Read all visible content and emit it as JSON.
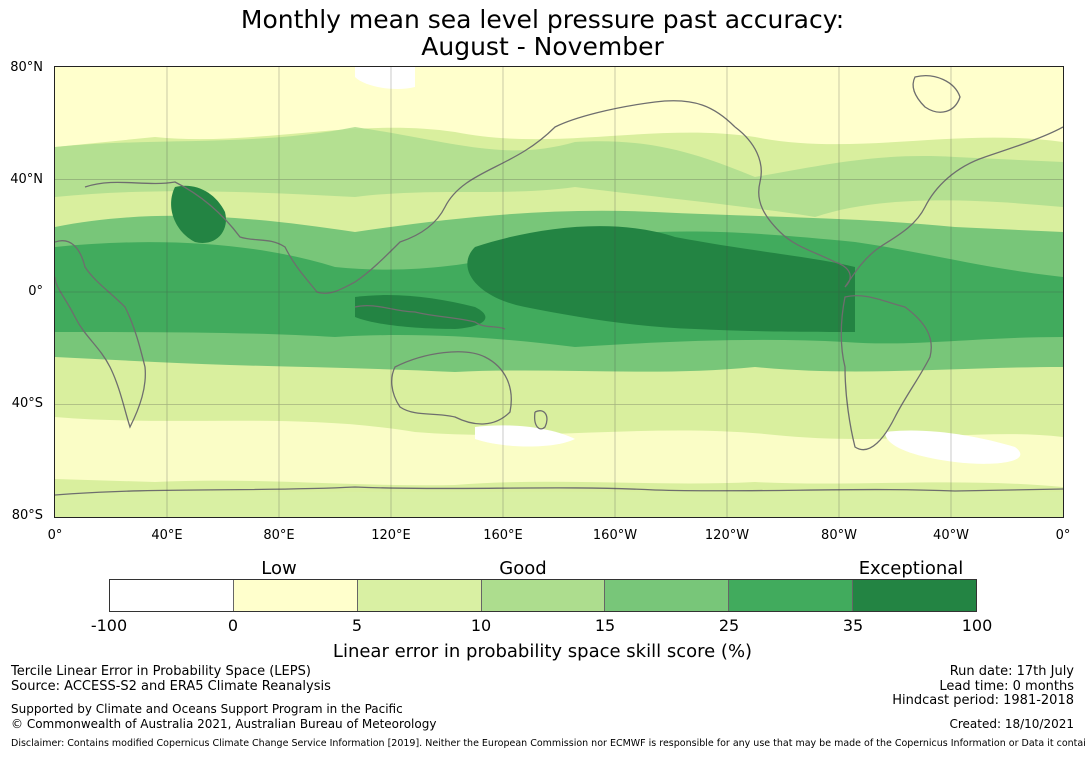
{
  "title": {
    "line1": "Monthly mean sea level pressure past accuracy:",
    "line2": "August - November"
  },
  "map": {
    "lat_labels": [
      "80°N",
      "40°N",
      "0°",
      "40°S",
      "80°S"
    ],
    "lon_labels": [
      "0°",
      "40°E",
      "80°E",
      "120°E",
      "160°E",
      "160°W",
      "120°W",
      "80°W",
      "40°W",
      "0°"
    ],
    "colors": {
      "ocean_bg": "#d9ef9e",
      "coastline": "#6e6e6e",
      "grid": "#444444"
    }
  },
  "legend": {
    "level_labels": [
      "Low",
      "Good",
      "Exceptional"
    ],
    "ticks": [
      "-100",
      "0",
      "5",
      "10",
      "15",
      "25",
      "35",
      "100"
    ],
    "colors": [
      "#ffffff",
      "#ffffcc",
      "#d9f0a3",
      "#addd8e",
      "#78c679",
      "#41ab5d",
      "#238443"
    ],
    "label": "Linear error in probability space skill score (%)"
  },
  "info_left": {
    "line1": "Tercile Linear Error in Probability Space (LEPS)",
    "line2": "Source: ACCESS-S2 and ERA5 Climate Reanalysis",
    "line3": "Supported by Climate and Oceans Support Program in the Pacific",
    "line4": "© Commonwealth of Australia 2021, Australian Bureau of Meteorology"
  },
  "info_right": {
    "run_date": "Run date: 17th July",
    "lead_time": "Lead time: 0 months",
    "hindcast": "Hindcast period: 1981-2018",
    "created": "Created: 18/10/2021"
  },
  "disclaimer": "Disclaimer: Contains modified Copernicus Climate Change Service Information [2019]. Neither the European Commission nor ECMWF is responsible for any use that may be made of the Copernicus Information or Data it contains."
}
